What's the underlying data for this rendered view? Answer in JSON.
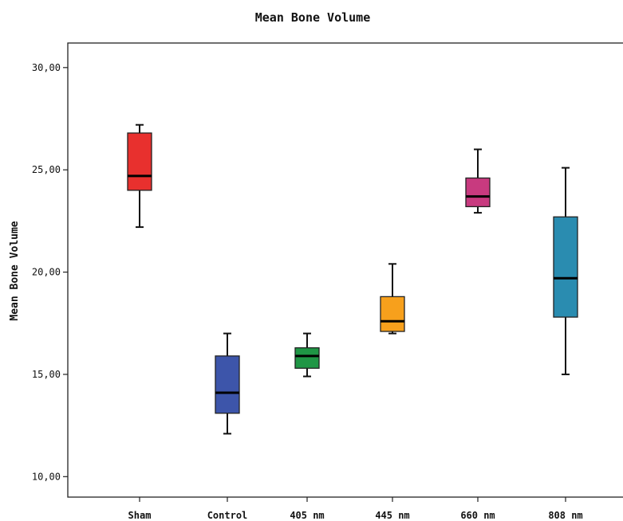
{
  "chart_data": {
    "type": "boxplot",
    "title": "Mean Bone Volume",
    "xlabel": "",
    "ylabel": "Mean Bone Volume",
    "ylim": [
      9.0,
      31.2
    ],
    "yticks": [
      "10,00",
      "15,00",
      "20,00",
      "25,00",
      "30,00"
    ],
    "ytick_values": [
      10,
      15,
      20,
      25,
      30
    ],
    "grid": false,
    "categories": [
      "Sham",
      "Control",
      "405 nm",
      "445 nm",
      "660 nm",
      "808 nm"
    ],
    "boxes": [
      {
        "min": 22.2,
        "q1": 24.0,
        "median": 24.7,
        "q3": 26.8,
        "max": 27.2,
        "color": "#e8302e"
      },
      {
        "min": 12.1,
        "q1": 13.1,
        "median": 14.1,
        "q3": 15.9,
        "max": 17.0,
        "color": "#3d55aa"
      },
      {
        "min": 14.9,
        "q1": 15.3,
        "median": 15.9,
        "q3": 16.3,
        "max": 17.0,
        "color": "#1f9645"
      },
      {
        "min": 17.0,
        "q1": 17.1,
        "median": 17.6,
        "q3": 18.8,
        "max": 20.4,
        "color": "#f7a01c"
      },
      {
        "min": 22.9,
        "q1": 23.2,
        "median": 23.7,
        "q3": 24.6,
        "max": 26.0,
        "color": "#c83a7f"
      },
      {
        "min": 15.0,
        "q1": 17.8,
        "median": 19.7,
        "q3": 22.7,
        "max": 25.1,
        "color": "#2a8cb0"
      }
    ]
  }
}
